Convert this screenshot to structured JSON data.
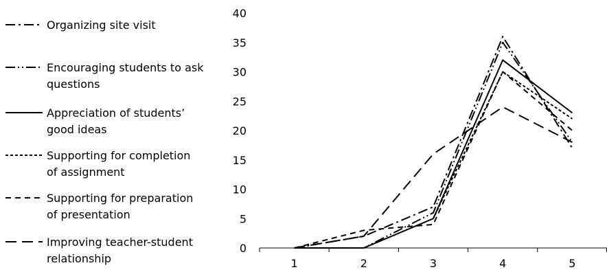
{
  "chart_data": {
    "type": "line",
    "x": [
      1,
      2,
      3,
      4,
      5
    ],
    "ylim": [
      0,
      40
    ],
    "yticks": [
      0,
      5,
      10,
      15,
      20,
      25,
      30,
      35,
      40
    ],
    "grid": false,
    "legend_position": "left",
    "series": [
      {
        "name": [
          "Organizing site visit"
        ],
        "values": [
          0,
          2,
          7,
          36,
          17
        ],
        "dash": "14 5 3 5"
      },
      {
        "name": [
          "Encouraging students to ask",
          "questions"
        ],
        "values": [
          0,
          0,
          6,
          35,
          18
        ],
        "dash": "14 4 2 4 2 4"
      },
      {
        "name": [
          "Appreciation of students’",
          "good ideas"
        ],
        "values": [
          0,
          0,
          5,
          32,
          23
        ],
        "dash": ""
      },
      {
        "name": [
          "Supporting for completion",
          "of assignment"
        ],
        "values": [
          0,
          0,
          5,
          30,
          22
        ],
        "dash": "4 3"
      },
      {
        "name": [
          "Supporting for preparation",
          "of presentation"
        ],
        "values": [
          0,
          3,
          4,
          30,
          20
        ],
        "dash": "8 6"
      },
      {
        "name": [
          "Improving teacher-student",
          "relationship"
        ],
        "values": [
          0,
          2,
          16,
          24,
          18
        ],
        "dash": "16 8"
      }
    ]
  }
}
